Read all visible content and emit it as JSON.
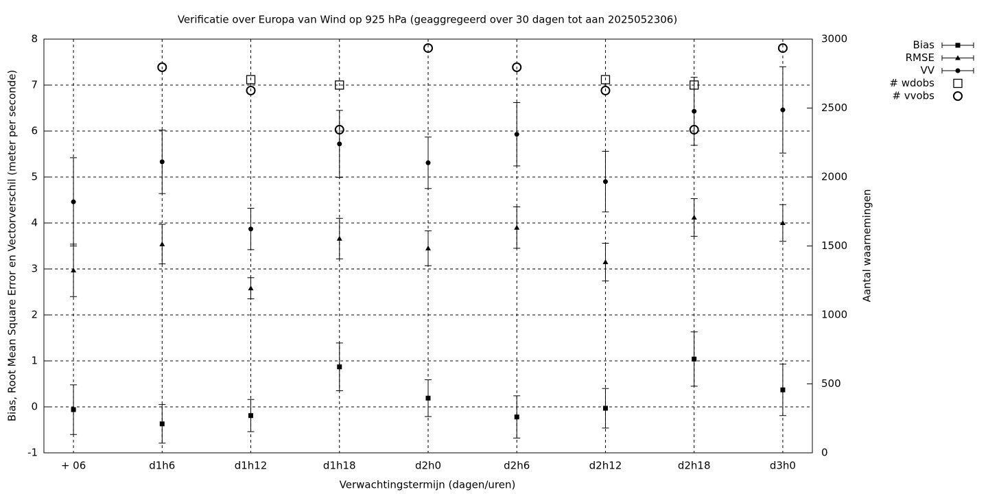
{
  "chart_data": {
    "type": "errorbar",
    "title": "Verificatie over Europa van Wind op 925 hPa (geaggregeerd over 30 dagen tot aan 2025052306)",
    "x_label": "Verwachtingstermijn (dagen/uren)",
    "y_label": "Bias, Root Mean Square Error en Vectorverschil (meter per seconde)",
    "y2_label": "Aantal waarnemingen",
    "categories": [
      "+ 06",
      "d1h6",
      "d1h12",
      "d1h18",
      "d2h0",
      "d2h6",
      "d2h12",
      "d2h18",
      "d3h0"
    ],
    "ylim": [
      -1,
      8
    ],
    "yticks": [
      -1,
      0,
      1,
      2,
      3,
      4,
      5,
      6,
      7,
      8
    ],
    "y2lim": [
      0,
      3000
    ],
    "y2ticks": [
      0,
      500,
      1000,
      1500,
      2000,
      2500,
      3000
    ],
    "grid": true,
    "legend": "top-right",
    "series": [
      {
        "name": "Bias",
        "color": "#000000",
        "marker": "square",
        "errorbars": true,
        "values": [
          -0.06,
          -0.37,
          -0.19,
          0.87,
          0.19,
          -0.22,
          -0.03,
          1.04,
          0.37
        ],
        "errors": [
          0.54,
          0.42,
          0.35,
          0.52,
          0.4,
          0.46,
          0.43,
          0.59,
          0.56
        ]
      },
      {
        "name": "RMSE",
        "color": "#000000",
        "marker": "triangle",
        "errorbars": true,
        "values": [
          2.97,
          3.54,
          2.58,
          3.66,
          3.45,
          3.9,
          3.15,
          4.12,
          4.0
        ],
        "errors": [
          0.57,
          0.43,
          0.23,
          0.44,
          0.38,
          0.45,
          0.41,
          0.41,
          0.4
        ]
      },
      {
        "name": "VV",
        "color": "#000000",
        "marker": "circle",
        "errorbars": true,
        "values": [
          4.46,
          5.33,
          3.87,
          5.72,
          5.31,
          5.93,
          4.9,
          6.43,
          6.46
        ],
        "errors": [
          0.96,
          0.69,
          0.45,
          0.73,
          0.56,
          0.69,
          0.66,
          0.74,
          0.94
        ]
      },
      {
        "name": "# wdobs",
        "color": "#000000",
        "marker": "open-square",
        "axis": "y2",
        "values": [
          null,
          null,
          2706,
          2667,
          null,
          null,
          2706,
          2667,
          null
        ]
      },
      {
        "name": "# vvobs",
        "color": "#000000",
        "marker": "open-circle",
        "axis": "y2",
        "values": [
          null,
          2796,
          2627,
          2343,
          2935,
          2796,
          2627,
          2343,
          2935
        ]
      }
    ]
  }
}
